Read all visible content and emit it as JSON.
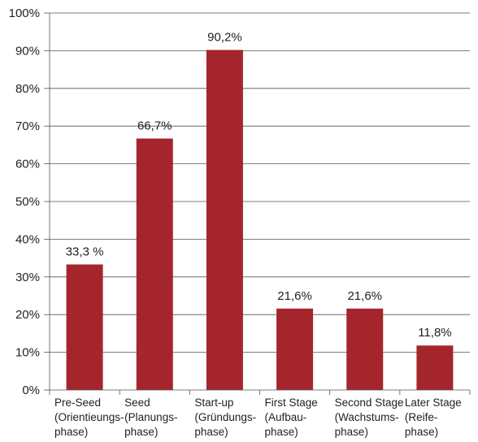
{
  "chart_data": {
    "type": "bar",
    "title": "",
    "xlabel": "",
    "ylabel": "",
    "ylim": [
      0,
      100
    ],
    "yticks": [
      0,
      10,
      20,
      30,
      40,
      50,
      60,
      70,
      80,
      90,
      100
    ],
    "ytick_labels": [
      "0%",
      "10%",
      "20%",
      "30%",
      "40%",
      "50%",
      "60%",
      "70%",
      "80%",
      "90%",
      "100%"
    ],
    "grid": true,
    "legend": "none",
    "bar_color": "#a4262c",
    "categories": [
      [
        "Pre-Seed",
        "(Orientieungs-",
        "phase)"
      ],
      [
        "Seed",
        "(Planungs-",
        "phase)"
      ],
      [
        "Start-up",
        "(Gründungs-",
        "phase)"
      ],
      [
        "First Stage",
        "(Aufbau-",
        "phase)"
      ],
      [
        "Second Stage",
        "(Wachstums-",
        "phase)"
      ],
      [
        "Later Stage",
        "(Reife-",
        "phase)"
      ]
    ],
    "values": [
      33.3,
      66.7,
      90.2,
      21.6,
      21.6,
      11.8
    ],
    "data_labels": [
      "33,3 %",
      "66,7%",
      "90,2%",
      "21,6%",
      "21,6%",
      "11,8%"
    ]
  }
}
